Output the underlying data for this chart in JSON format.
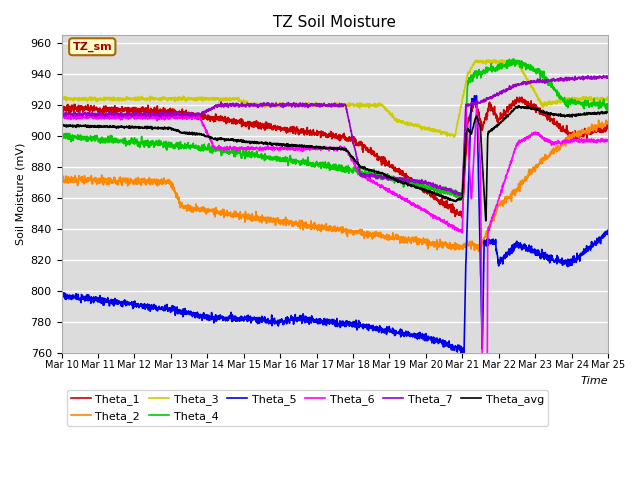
{
  "title": "TZ Soil Moisture",
  "ylabel": "Soil Moisture (mV)",
  "xlabel": "Time",
  "legend_label": "TZ_sm",
  "ylim": [
    760,
    965
  ],
  "yticks": [
    760,
    780,
    800,
    820,
    840,
    860,
    880,
    900,
    920,
    940,
    960
  ],
  "xtick_labels": [
    "Mar 10",
    "Mar 11",
    "Mar 12",
    "Mar 13",
    "Mar 14",
    "Mar 15",
    "Mar 16",
    "Mar 17",
    "Mar 18",
    "Mar 19",
    "Mar 20",
    "Mar 21",
    "Mar 22",
    "Mar 23",
    "Mar 24",
    "Mar 25"
  ],
  "bg_color": "#dcdcdc",
  "grid_color": "#ffffff",
  "series_colors": {
    "Theta_1": "#cc0000",
    "Theta_2": "#ff8800",
    "Theta_3": "#cccc00",
    "Theta_4": "#00cc00",
    "Theta_5": "#0000ee",
    "Theta_6": "#ff00ff",
    "Theta_7": "#9900cc",
    "Theta_avg": "#000000"
  }
}
